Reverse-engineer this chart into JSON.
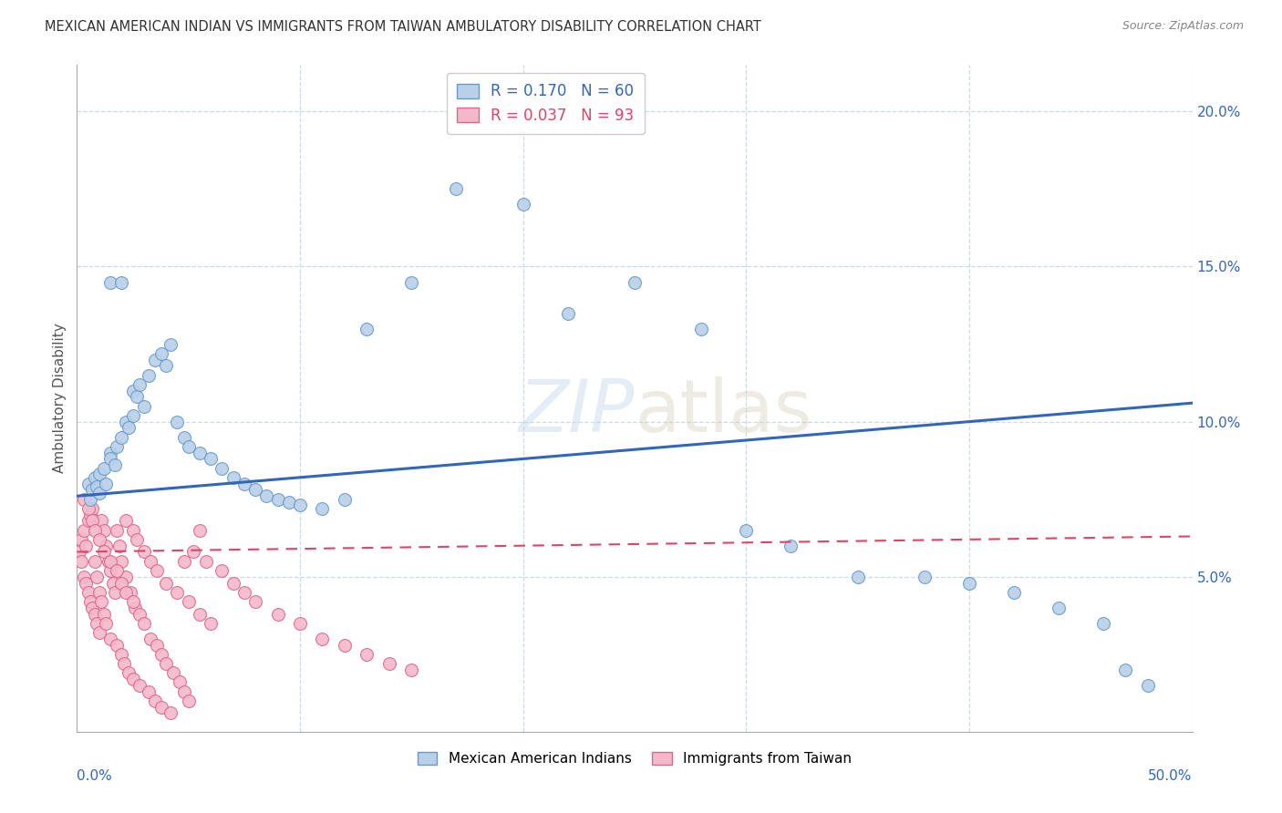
{
  "title": "MEXICAN AMERICAN INDIAN VS IMMIGRANTS FROM TAIWAN AMBULATORY DISABILITY CORRELATION CHART",
  "source": "Source: ZipAtlas.com",
  "ylabel": "Ambulatory Disability",
  "ylim": [
    0.0,
    0.215
  ],
  "xlim": [
    0.0,
    0.5
  ],
  "yticks": [
    0.0,
    0.05,
    0.1,
    0.15,
    0.2
  ],
  "ytick_labels": [
    "",
    "5.0%",
    "10.0%",
    "15.0%",
    "20.0%"
  ],
  "blue_R": 0.17,
  "blue_N": 60,
  "pink_R": 0.037,
  "pink_N": 93,
  "blue_color": "#b8d0e8",
  "blue_edge": "#6699cc",
  "blue_line_color": "#3366bb",
  "pink_color": "#f5b8cb",
  "pink_edge": "#dd6688",
  "pink_line_color": "#dd4466",
  "legend_label_blue": "Mexican American Indians",
  "legend_label_pink": "Immigrants from Taiwan",
  "background_color": "#ffffff",
  "grid_color": "#c8dce8",
  "blue_trend_x0": 0.0,
  "blue_trend_x1": 0.5,
  "blue_trend_y0": 0.076,
  "blue_trend_y1": 0.106,
  "pink_trend_x0": 0.0,
  "pink_trend_x1": 0.5,
  "pink_trend_y0": 0.058,
  "pink_trend_y1": 0.063,
  "blue_x": [
    0.005,
    0.006,
    0.007,
    0.008,
    0.009,
    0.01,
    0.01,
    0.012,
    0.013,
    0.015,
    0.015,
    0.017,
    0.018,
    0.02,
    0.022,
    0.023,
    0.025,
    0.025,
    0.027,
    0.028,
    0.03,
    0.032,
    0.035,
    0.038,
    0.04,
    0.042,
    0.045,
    0.048,
    0.05,
    0.055,
    0.06,
    0.065,
    0.07,
    0.075,
    0.08,
    0.085,
    0.09,
    0.095,
    0.1,
    0.11,
    0.12,
    0.13,
    0.15,
    0.17,
    0.2,
    0.22,
    0.25,
    0.28,
    0.3,
    0.32,
    0.35,
    0.38,
    0.4,
    0.42,
    0.44,
    0.46,
    0.47,
    0.48,
    0.015,
    0.02
  ],
  "blue_y": [
    0.08,
    0.075,
    0.078,
    0.082,
    0.079,
    0.083,
    0.077,
    0.085,
    0.08,
    0.09,
    0.088,
    0.086,
    0.092,
    0.095,
    0.1,
    0.098,
    0.102,
    0.11,
    0.108,
    0.112,
    0.105,
    0.115,
    0.12,
    0.122,
    0.118,
    0.125,
    0.1,
    0.095,
    0.092,
    0.09,
    0.088,
    0.085,
    0.082,
    0.08,
    0.078,
    0.076,
    0.075,
    0.074,
    0.073,
    0.072,
    0.075,
    0.13,
    0.145,
    0.175,
    0.17,
    0.135,
    0.145,
    0.13,
    0.065,
    0.06,
    0.05,
    0.05,
    0.048,
    0.045,
    0.04,
    0.035,
    0.02,
    0.015,
    0.145,
    0.145
  ],
  "pink_x": [
    0.001,
    0.002,
    0.002,
    0.003,
    0.003,
    0.004,
    0.004,
    0.005,
    0.005,
    0.006,
    0.006,
    0.007,
    0.007,
    0.008,
    0.008,
    0.009,
    0.009,
    0.01,
    0.01,
    0.011,
    0.011,
    0.012,
    0.012,
    0.013,
    0.013,
    0.014,
    0.015,
    0.015,
    0.016,
    0.017,
    0.018,
    0.018,
    0.019,
    0.02,
    0.02,
    0.021,
    0.022,
    0.022,
    0.023,
    0.024,
    0.025,
    0.025,
    0.026,
    0.027,
    0.028,
    0.03,
    0.032,
    0.033,
    0.035,
    0.036,
    0.038,
    0.04,
    0.042,
    0.045,
    0.048,
    0.05,
    0.052,
    0.055,
    0.058,
    0.06,
    0.065,
    0.07,
    0.075,
    0.08,
    0.09,
    0.1,
    0.11,
    0.12,
    0.13,
    0.14,
    0.15,
    0.003,
    0.005,
    0.007,
    0.008,
    0.01,
    0.012,
    0.015,
    0.018,
    0.02,
    0.022,
    0.025,
    0.028,
    0.03,
    0.033,
    0.036,
    0.038,
    0.04,
    0.043,
    0.046,
    0.048,
    0.05,
    0.055
  ],
  "pink_y": [
    0.058,
    0.055,
    0.062,
    0.05,
    0.065,
    0.048,
    0.06,
    0.045,
    0.068,
    0.042,
    0.07,
    0.04,
    0.072,
    0.038,
    0.055,
    0.035,
    0.05,
    0.032,
    0.045,
    0.068,
    0.042,
    0.065,
    0.038,
    0.06,
    0.035,
    0.055,
    0.03,
    0.052,
    0.048,
    0.045,
    0.065,
    0.028,
    0.06,
    0.025,
    0.055,
    0.022,
    0.05,
    0.068,
    0.019,
    0.045,
    0.065,
    0.017,
    0.04,
    0.062,
    0.015,
    0.058,
    0.013,
    0.055,
    0.01,
    0.052,
    0.008,
    0.048,
    0.006,
    0.045,
    0.055,
    0.042,
    0.058,
    0.038,
    0.055,
    0.035,
    0.052,
    0.048,
    0.045,
    0.042,
    0.038,
    0.035,
    0.03,
    0.028,
    0.025,
    0.022,
    0.02,
    0.075,
    0.072,
    0.068,
    0.065,
    0.062,
    0.058,
    0.055,
    0.052,
    0.048,
    0.045,
    0.042,
    0.038,
    0.035,
    0.03,
    0.028,
    0.025,
    0.022,
    0.019,
    0.016,
    0.013,
    0.01,
    0.065
  ]
}
